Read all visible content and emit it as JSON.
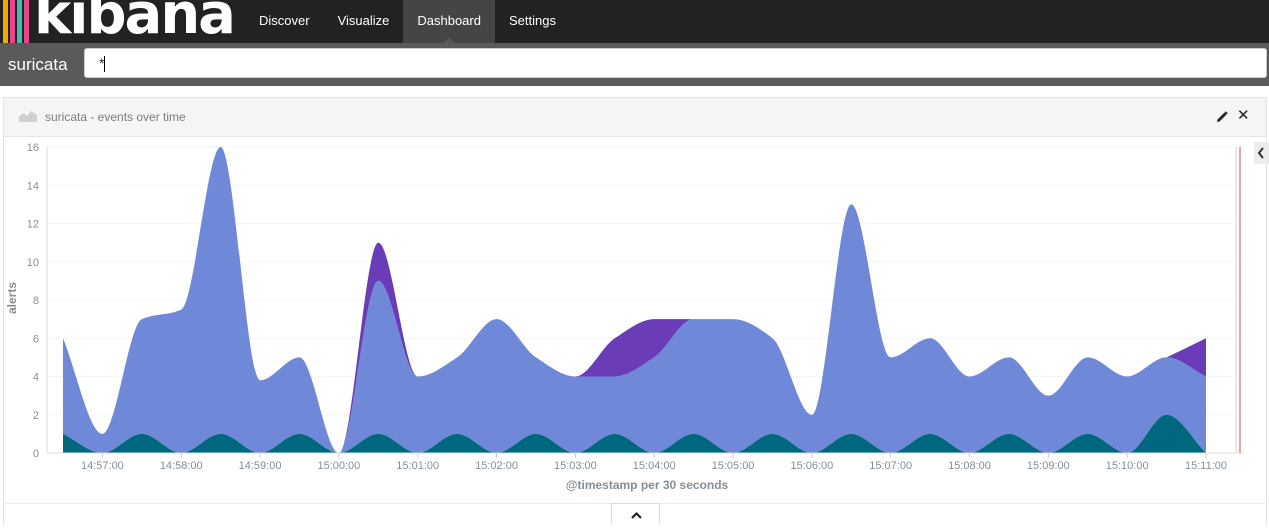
{
  "app": {
    "logo_text": "kibana",
    "logo_colors": [
      "#f2a900",
      "#e8488b",
      "#3cbeb1",
      "#e8488b"
    ]
  },
  "nav": {
    "items": [
      {
        "label": "Discover",
        "active": false
      },
      {
        "label": "Visualize",
        "active": false
      },
      {
        "label": "Dashboard",
        "active": true
      },
      {
        "label": "Settings",
        "active": false
      }
    ]
  },
  "search": {
    "index": "suricata",
    "query": "*"
  },
  "panel": {
    "title": "suricata - events over time",
    "icons": {
      "type": "area-chart-icon",
      "edit": "pencil-icon",
      "close": "close-icon",
      "legend": "chevron-left-icon",
      "expand": "chevron-up-icon"
    }
  },
  "colors": {
    "series_blue": "#7088d8",
    "series_purple": "#6a3cb8",
    "series_teal": "#00687e",
    "nav_bg": "#222222",
    "search_bg": "#5a5a5a"
  },
  "chart_data": {
    "type": "area",
    "xlabel": "@timestamp per 30 seconds",
    "ylabel": "alerts",
    "ylim": [
      0,
      16
    ],
    "yticks": [
      0,
      2,
      4,
      6,
      8,
      10,
      12,
      14,
      16
    ],
    "xticks": [
      "14:57:00",
      "14:58:00",
      "14:59:00",
      "15:00:00",
      "15:01:00",
      "15:02:00",
      "15:03:00",
      "15:04:00",
      "15:05:00",
      "15:06:00",
      "15:07:00",
      "15:08:00",
      "15:09:00",
      "15:10:00",
      "15:11:00"
    ],
    "x": [
      "14:56:30",
      "14:57:00",
      "14:57:30",
      "14:58:00",
      "14:58:30",
      "14:59:00",
      "14:59:30",
      "15:00:00",
      "15:00:30",
      "15:01:00",
      "15:01:30",
      "15:02:00",
      "15:02:30",
      "15:03:00",
      "15:03:30",
      "15:04:00",
      "15:04:30",
      "15:05:00",
      "15:05:30",
      "15:06:00",
      "15:06:30",
      "15:07:00",
      "15:07:30",
      "15:08:00",
      "15:08:30",
      "15:09:00",
      "15:09:30",
      "15:10:00",
      "15:10:30",
      "15:11:00"
    ],
    "stacked": true,
    "series": [
      {
        "color": "#00687e",
        "values": [
          1,
          0,
          1,
          0,
          1,
          0,
          1,
          0,
          1,
          0,
          1,
          0,
          1,
          0,
          1,
          0,
          1,
          0,
          1,
          0,
          1,
          0,
          1,
          0,
          1,
          0,
          1,
          0,
          2,
          0
        ]
      },
      {
        "color": "#7088d8",
        "values": [
          5,
          1,
          6,
          7.5,
          15,
          3.8,
          4,
          0,
          8,
          4,
          4,
          7,
          4,
          4,
          3,
          5,
          6,
          7,
          5,
          2,
          12,
          5,
          5,
          4,
          4,
          3,
          4,
          4,
          3,
          4
        ]
      },
      {
        "color": "#6a3cb8",
        "values": [
          0,
          0,
          0,
          0,
          0,
          0,
          0,
          0,
          2,
          0,
          0,
          0,
          0,
          0,
          2,
          2,
          0,
          0,
          0,
          0,
          0,
          0,
          0,
          0,
          0,
          0,
          0,
          0,
          0,
          2
        ]
      }
    ]
  }
}
